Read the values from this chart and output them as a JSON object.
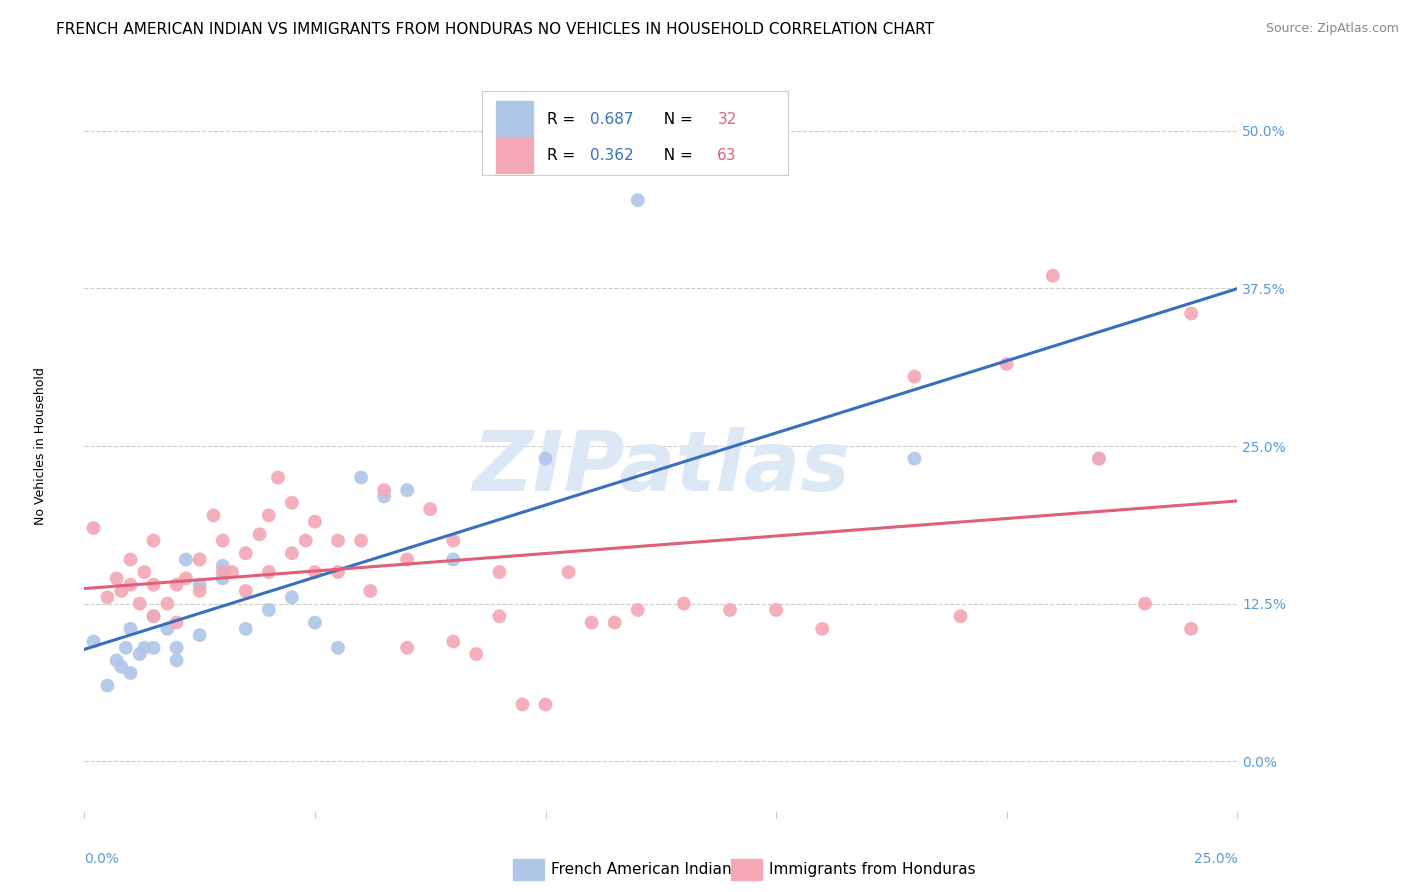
{
  "title": "FRENCH AMERICAN INDIAN VS IMMIGRANTS FROM HONDURAS NO VEHICLES IN HOUSEHOLD CORRELATION CHART",
  "source": "Source: ZipAtlas.com",
  "ylabel": "No Vehicles in Household",
  "yticks": [
    0.0,
    0.125,
    0.25,
    0.375,
    0.5
  ],
  "ytick_labels": [
    "0.0%",
    "12.5%",
    "25.0%",
    "37.5%",
    "50.0%"
  ],
  "xlim": [
    0.0,
    0.25
  ],
  "ylim": [
    -0.04,
    0.54
  ],
  "blue_R": 0.687,
  "blue_N": 32,
  "pink_R": 0.362,
  "pink_N": 63,
  "blue_label": "French American Indians",
  "pink_label": "Immigrants from Honduras",
  "blue_color": "#aec6e8",
  "pink_color": "#f4a7b5",
  "blue_line_color": "#3a6fbd",
  "pink_line_color": "#e0607a",
  "tick_color": "#5b9bd5",
  "watermark_color": "#dce8f5",
  "grid_color": "#cccccc",
  "blue_scatter_x": [
    0.002,
    0.005,
    0.007,
    0.008,
    0.009,
    0.01,
    0.01,
    0.012,
    0.013,
    0.015,
    0.015,
    0.018,
    0.02,
    0.02,
    0.022,
    0.025,
    0.025,
    0.03,
    0.03,
    0.035,
    0.04,
    0.045,
    0.05,
    0.055,
    0.06,
    0.065,
    0.07,
    0.08,
    0.1,
    0.12,
    0.18,
    0.22
  ],
  "blue_scatter_y": [
    0.095,
    0.06,
    0.08,
    0.075,
    0.09,
    0.07,
    0.105,
    0.085,
    0.09,
    0.09,
    0.115,
    0.105,
    0.09,
    0.08,
    0.16,
    0.14,
    0.1,
    0.145,
    0.155,
    0.105,
    0.12,
    0.13,
    0.11,
    0.09,
    0.225,
    0.21,
    0.215,
    0.16,
    0.24,
    0.445,
    0.24,
    0.24
  ],
  "pink_scatter_x": [
    0.002,
    0.005,
    0.007,
    0.008,
    0.01,
    0.01,
    0.012,
    0.013,
    0.015,
    0.015,
    0.015,
    0.018,
    0.02,
    0.02,
    0.022,
    0.025,
    0.025,
    0.028,
    0.03,
    0.03,
    0.032,
    0.035,
    0.035,
    0.038,
    0.04,
    0.04,
    0.042,
    0.045,
    0.045,
    0.048,
    0.05,
    0.05,
    0.055,
    0.055,
    0.06,
    0.062,
    0.065,
    0.07,
    0.07,
    0.075,
    0.08,
    0.08,
    0.085,
    0.09,
    0.09,
    0.095,
    0.1,
    0.105,
    0.11,
    0.115,
    0.12,
    0.13,
    0.14,
    0.15,
    0.16,
    0.18,
    0.19,
    0.2,
    0.21,
    0.22,
    0.23,
    0.24,
    0.24
  ],
  "pink_scatter_y": [
    0.185,
    0.13,
    0.145,
    0.135,
    0.14,
    0.16,
    0.125,
    0.15,
    0.14,
    0.115,
    0.175,
    0.125,
    0.14,
    0.11,
    0.145,
    0.135,
    0.16,
    0.195,
    0.15,
    0.175,
    0.15,
    0.135,
    0.165,
    0.18,
    0.15,
    0.195,
    0.225,
    0.165,
    0.205,
    0.175,
    0.15,
    0.19,
    0.15,
    0.175,
    0.175,
    0.135,
    0.215,
    0.09,
    0.16,
    0.2,
    0.175,
    0.095,
    0.085,
    0.15,
    0.115,
    0.045,
    0.045,
    0.15,
    0.11,
    0.11,
    0.12,
    0.125,
    0.12,
    0.12,
    0.105,
    0.305,
    0.115,
    0.315,
    0.385,
    0.24,
    0.125,
    0.355,
    0.105
  ],
  "background_color": "#ffffff",
  "title_fontsize": 11,
  "source_fontsize": 9,
  "axis_tick_fontsize": 10,
  "legend_fontsize": 11,
  "ylabel_fontsize": 9
}
